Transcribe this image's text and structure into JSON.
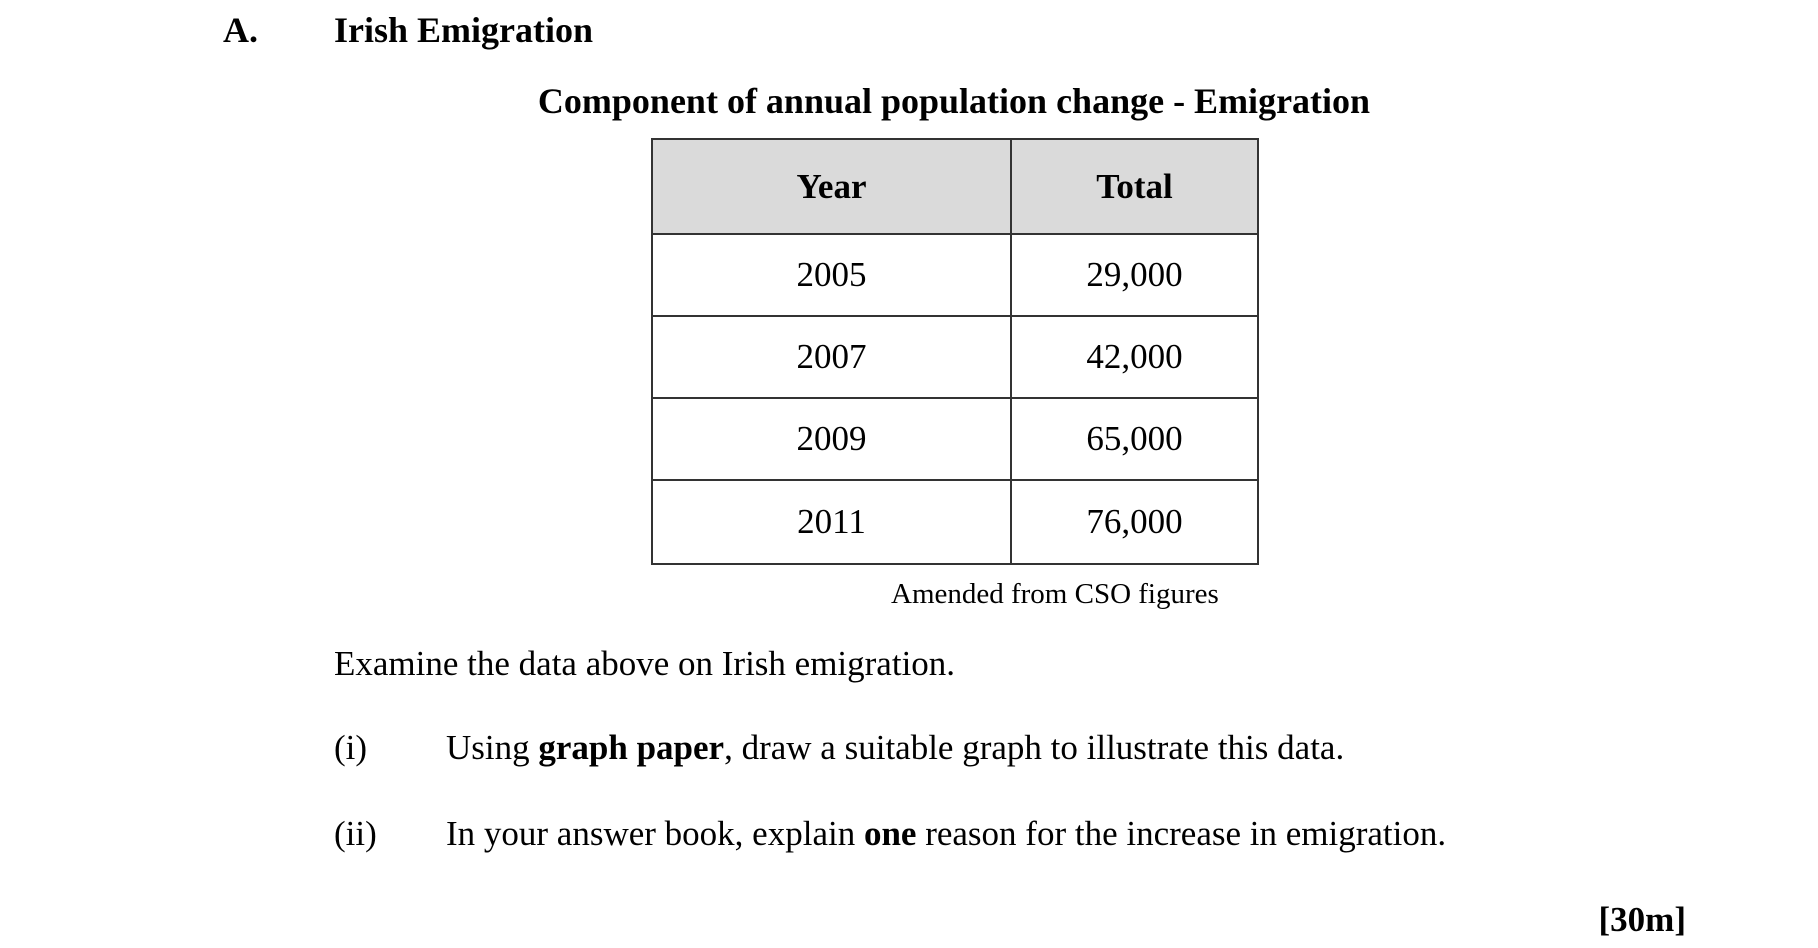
{
  "section": {
    "letter": "A.",
    "title": "Irish Emigration"
  },
  "table": {
    "title": "Component of annual population change - Emigration",
    "headers": [
      "Year",
      "Total"
    ],
    "rows": [
      [
        "2005",
        "29,000"
      ],
      [
        "2007",
        "42,000"
      ],
      [
        "2009",
        "65,000"
      ],
      [
        "2011",
        "76,000"
      ]
    ],
    "source": "Amended from CSO figures"
  },
  "intro": "Examine the data above on Irish emigration.",
  "questions": [
    {
      "num": "(i)",
      "pre": "Using ",
      "bold": "graph paper",
      "post": ", draw a suitable graph to illustrate this data."
    },
    {
      "num": "(ii)",
      "pre": "In your answer book, explain ",
      "bold": "one",
      "post": " reason for the increase in emigration."
    }
  ],
  "marks": "[30m]"
}
